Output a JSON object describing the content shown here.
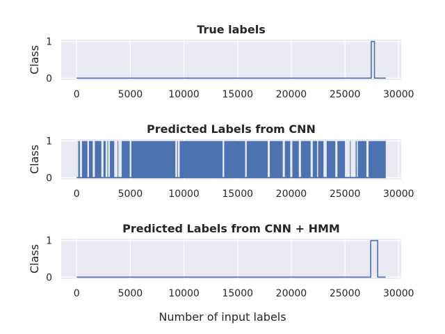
{
  "figure": {
    "xlabel": "Number of input labels"
  },
  "chart_data": [
    {
      "type": "line",
      "title": "True labels",
      "ylabel": "Class",
      "xlim": [
        -1440,
        30240
      ],
      "ylim": [
        -0.05,
        1.05
      ],
      "xticks": [
        0,
        5000,
        10000,
        15000,
        20000,
        25000,
        30000
      ],
      "yticks": [
        0,
        1
      ],
      "grid": true,
      "color": "#4c72b0",
      "series": [
        {
          "x": [
            0,
            27450,
            27450,
            27750,
            27750,
            28800
          ],
          "y": [
            0,
            0,
            1,
            1,
            0,
            0
          ]
        }
      ]
    },
    {
      "type": "line",
      "title": "Predicted Labels from CNN",
      "ylabel": "Class",
      "xlim": [
        -1440,
        30240
      ],
      "ylim": [
        -0.05,
        1.05
      ],
      "xticks": [
        0,
        5000,
        10000,
        15000,
        20000,
        25000,
        30000
      ],
      "yticks": [
        0,
        1
      ],
      "grid": true,
      "color": "#4c72b0",
      "dense_switching": {
        "x_start": 0,
        "x_end": 28800,
        "gaps_at_zero": [
          [
            0,
            150
          ],
          [
            300,
            500
          ],
          [
            1000,
            1150
          ],
          [
            1500,
            1700
          ],
          [
            2300,
            2500
          ],
          [
            2700,
            3100
          ],
          [
            3500,
            4200
          ],
          [
            4950,
            5100
          ],
          [
            9200,
            9600
          ],
          [
            13600,
            13750
          ],
          [
            15700,
            15850
          ],
          [
            17800,
            18000
          ],
          [
            19200,
            19400
          ],
          [
            19900,
            20100
          ],
          [
            20700,
            20900
          ],
          [
            21800,
            22000
          ],
          [
            22400,
            22500
          ],
          [
            23000,
            23300
          ],
          [
            24100,
            24300
          ],
          [
            25000,
            26000
          ],
          [
            26100,
            26200
          ],
          [
            27000,
            27200
          ]
        ]
      }
    },
    {
      "type": "line",
      "title": "Predicted Labels from CNN + HMM",
      "ylabel": "Class",
      "xlim": [
        -1440,
        30240
      ],
      "ylim": [
        -0.05,
        1.05
      ],
      "xticks": [
        0,
        5000,
        10000,
        15000,
        20000,
        25000,
        30000
      ],
      "yticks": [
        0,
        1
      ],
      "grid": true,
      "color": "#4c72b0",
      "series": [
        {
          "x": [
            0,
            27400,
            27400,
            28050,
            28050,
            28800
          ],
          "y": [
            0,
            0,
            1,
            1,
            0,
            0
          ]
        }
      ]
    }
  ]
}
